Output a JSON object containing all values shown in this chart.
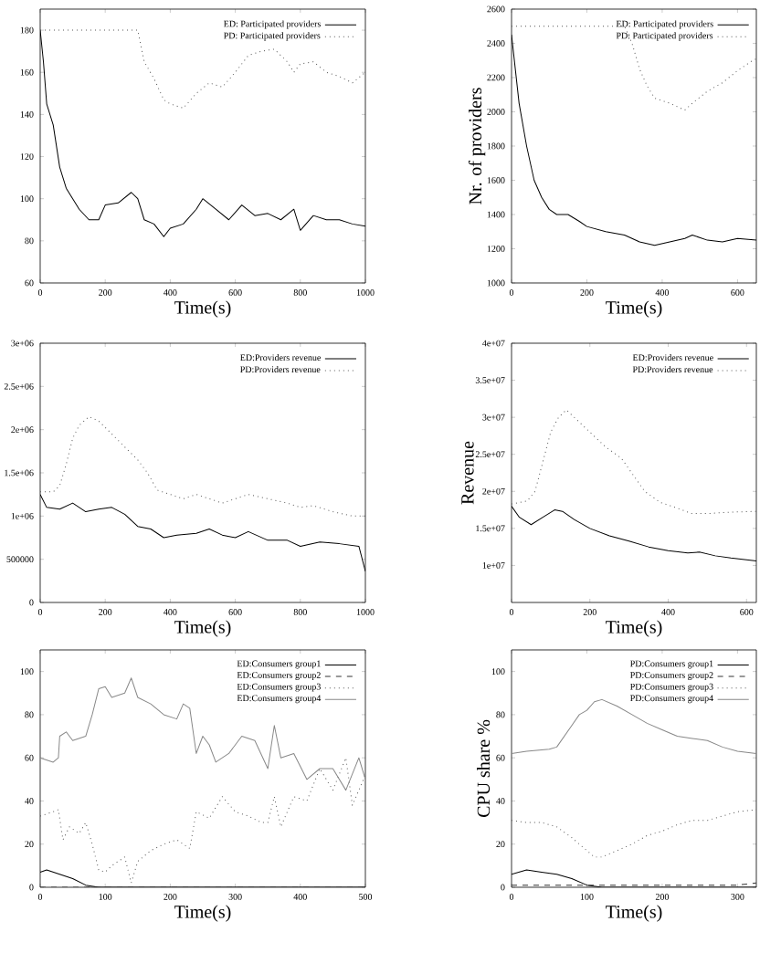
{
  "chart_data": [
    {
      "type": "line",
      "xlabel": "Time(s)",
      "xlim": [
        0,
        1000
      ],
      "xticks": [
        0,
        200,
        400,
        600,
        800,
        1000
      ],
      "ylim": [
        60,
        190
      ],
      "yticks": [
        60,
        80,
        100,
        120,
        140,
        160,
        180
      ],
      "legend": "top right",
      "series": [
        {
          "name": "ED: Participated providers",
          "color": "#000000",
          "line_style": "solid",
          "x": [
            0,
            10,
            20,
            40,
            60,
            80,
            100,
            120,
            150,
            180,
            200,
            240,
            280,
            300,
            320,
            350,
            380,
            400,
            440,
            480,
            500,
            540,
            580,
            620,
            660,
            700,
            740,
            780,
            800,
            840,
            880,
            920,
            960,
            1000
          ],
          "values": [
            180,
            165,
            145,
            135,
            115,
            105,
            100,
            95,
            90,
            90,
            97,
            98,
            103,
            100,
            90,
            88,
            82,
            86,
            88,
            95,
            100,
            95,
            90,
            97,
            92,
            93,
            90,
            95,
            85,
            92,
            90,
            90,
            88,
            87
          ]
        },
        {
          "name": "PD: Participated providers",
          "color": "#555555",
          "line_style": "dotted",
          "x": [
            0,
            300,
            320,
            350,
            380,
            400,
            440,
            480,
            520,
            560,
            600,
            640,
            680,
            720,
            760,
            780,
            800,
            840,
            880,
            920,
            960,
            1000
          ],
          "values": [
            180,
            180,
            165,
            157,
            147,
            145,
            143,
            150,
            155,
            153,
            160,
            168,
            170,
            171,
            165,
            160,
            164,
            165,
            160,
            158,
            155,
            160
          ]
        }
      ]
    },
    {
      "type": "line",
      "xlabel": "Time(s)",
      "ylabel": "Nr. of providers",
      "xlim": [
        0,
        650
      ],
      "xticks": [
        0,
        200,
        400,
        600
      ],
      "ylim": [
        1000,
        2600
      ],
      "yticks": [
        1000,
        1200,
        1400,
        1600,
        1800,
        2000,
        2200,
        2400,
        2600
      ],
      "legend": "top right",
      "series": [
        {
          "name": "ED: Participated providers",
          "color": "#000000",
          "line_style": "solid",
          "x": [
            0,
            10,
            20,
            40,
            60,
            80,
            100,
            120,
            150,
            180,
            200,
            250,
            300,
            340,
            380,
            420,
            460,
            480,
            520,
            560,
            600,
            650
          ],
          "values": [
            2450,
            2250,
            2050,
            1800,
            1600,
            1500,
            1430,
            1400,
            1400,
            1360,
            1330,
            1300,
            1280,
            1240,
            1220,
            1240,
            1260,
            1280,
            1250,
            1240,
            1260,
            1250
          ]
        },
        {
          "name": "PD: Participated providers",
          "color": "#555555",
          "line_style": "dotted",
          "x": [
            0,
            300,
            320,
            340,
            360,
            380,
            420,
            460,
            480,
            520,
            560,
            600,
            640,
            650
          ],
          "values": [
            2500,
            2500,
            2400,
            2250,
            2150,
            2080,
            2050,
            2010,
            2050,
            2120,
            2170,
            2240,
            2300,
            2310
          ]
        }
      ]
    },
    {
      "type": "line",
      "xlabel": "Time(s)",
      "xlim": [
        0,
        1000
      ],
      "xticks": [
        0,
        200,
        400,
        600,
        800,
        1000
      ],
      "ylim": [
        0,
        3000000
      ],
      "yticks": [
        0,
        500000,
        {
          "value": 1000000,
          "label": "1e+06"
        },
        {
          "value": 1500000,
          "label": "1.5e+06"
        },
        {
          "value": 2000000,
          "label": "2e+06"
        },
        {
          "value": 2500000,
          "label": "2.5e+06"
        },
        {
          "value": 3000000,
          "label": "3e+06"
        }
      ],
      "legend": "top right",
      "series": [
        {
          "name": "ED:Providers revenue",
          "color": "#000000",
          "line_style": "solid",
          "x": [
            0,
            20,
            60,
            100,
            140,
            180,
            220,
            260,
            300,
            340,
            380,
            420,
            480,
            520,
            560,
            600,
            640,
            700,
            760,
            800,
            860,
            920,
            980,
            1000
          ],
          "values": [
            1250000,
            1100000,
            1080000,
            1150000,
            1050000,
            1080000,
            1100000,
            1020000,
            880000,
            850000,
            750000,
            780000,
            800000,
            850000,
            780000,
            750000,
            820000,
            720000,
            720000,
            650000,
            700000,
            680000,
            650000,
            360000
          ]
        },
        {
          "name": "PD:Providers revenue",
          "color": "#555555",
          "line_style": "dotted",
          "x": [
            0,
            40,
            60,
            80,
            100,
            120,
            150,
            180,
            220,
            260,
            300,
            330,
            360,
            400,
            440,
            480,
            520,
            560,
            600,
            640,
            700,
            760,
            800,
            840,
            900,
            960,
            1000
          ],
          "values": [
            1280000,
            1280000,
            1350000,
            1600000,
            1900000,
            2050000,
            2150000,
            2100000,
            1950000,
            1800000,
            1650000,
            1500000,
            1300000,
            1250000,
            1200000,
            1250000,
            1200000,
            1150000,
            1200000,
            1250000,
            1200000,
            1150000,
            1100000,
            1120000,
            1050000,
            1000000,
            1000000
          ]
        }
      ]
    },
    {
      "type": "line",
      "xlabel": "Time(s)",
      "ylabel": "Revenue",
      "xlim": [
        0,
        625
      ],
      "xticks": [
        0,
        200,
        400,
        600
      ],
      "ylim": [
        5000000,
        40000000
      ],
      "yticks": [
        {
          "value": 10000000,
          "label": "1e+07"
        },
        {
          "value": 15000000,
          "label": "1.5e+07"
        },
        {
          "value": 20000000,
          "label": "2e+07"
        },
        {
          "value": 25000000,
          "label": "2.5e+07"
        },
        {
          "value": 30000000,
          "label": "3e+07"
        },
        {
          "value": 35000000,
          "label": "3.5e+07"
        },
        {
          "value": 40000000,
          "label": "4e+07"
        }
      ],
      "legend": "top right",
      "series": [
        {
          "name": "ED:Providers revenue",
          "color": "#000000",
          "line_style": "solid",
          "x": [
            0,
            20,
            50,
            80,
            110,
            130,
            160,
            200,
            250,
            300,
            350,
            400,
            450,
            480,
            520,
            560,
            625
          ],
          "values": [
            18000000,
            16500000,
            15500000,
            16500000,
            17500000,
            17300000,
            16200000,
            15000000,
            14000000,
            13300000,
            12500000,
            12000000,
            11700000,
            11800000,
            11300000,
            11000000,
            10600000
          ]
        },
        {
          "name": "PD:Providers revenue",
          "color": "#555555",
          "line_style": "dotted",
          "x": [
            0,
            40,
            60,
            80,
            100,
            120,
            140,
            160,
            200,
            240,
            280,
            300,
            340,
            380,
            420,
            460,
            500,
            560,
            625
          ],
          "values": [
            18300000,
            18700000,
            20000000,
            24000000,
            28000000,
            30000000,
            31000000,
            30000000,
            28000000,
            26000000,
            24500000,
            23000000,
            20000000,
            18500000,
            17800000,
            17000000,
            17000000,
            17200000,
            17300000
          ]
        }
      ]
    },
    {
      "type": "line",
      "xlabel": "Time(s)",
      "xlim": [
        0,
        500
      ],
      "xticks": [
        0,
        100,
        200,
        300,
        400,
        500
      ],
      "ylim": [
        0,
        110
      ],
      "yticks": [
        0,
        20,
        40,
        60,
        80,
        100
      ],
      "legend": "top right",
      "series": [
        {
          "name": "ED:Consumers group1",
          "color": "#000000",
          "line_style": "solid",
          "x": [
            0,
            10,
            30,
            50,
            70,
            90,
            500
          ],
          "values": [
            7,
            8,
            6,
            4,
            1,
            0,
            0
          ]
        },
        {
          "name": "ED:Consumers group2",
          "color": "#333333",
          "line_style": "dashed",
          "x": [
            0,
            500
          ],
          "values": [
            0,
            0
          ]
        },
        {
          "name": "ED:Consumers group3",
          "color": "#555555",
          "line_style": "dotted",
          "x": [
            0,
            20,
            28,
            35,
            45,
            60,
            70,
            80,
            90,
            100,
            110,
            120,
            130,
            140,
            150,
            170,
            190,
            210,
            230,
            240,
            260,
            280,
            300,
            320,
            340,
            350,
            360,
            370,
            390,
            410,
            430,
            450,
            470,
            480,
            500
          ],
          "values": [
            33,
            35,
            36,
            22,
            28,
            25,
            30,
            20,
            8,
            7,
            10,
            12,
            14,
            2,
            12,
            17,
            20,
            22,
            18,
            35,
            32,
            42,
            35,
            33,
            30,
            30,
            42,
            28,
            42,
            40,
            55,
            45,
            60,
            38,
            52
          ]
        },
        {
          "name": "ED:Consumers group4",
          "color": "#888888",
          "line_style": "solid",
          "x": [
            0,
            20,
            28,
            30,
            40,
            50,
            70,
            80,
            90,
            100,
            110,
            130,
            140,
            150,
            170,
            190,
            210,
            220,
            230,
            240,
            250,
            260,
            270,
            290,
            310,
            330,
            350,
            360,
            370,
            390,
            410,
            430,
            450,
            470,
            490,
            500
          ],
          "values": [
            60,
            58,
            60,
            70,
            72,
            68,
            70,
            80,
            92,
            93,
            88,
            90,
            97,
            88,
            85,
            80,
            78,
            85,
            83,
            62,
            70,
            66,
            58,
            62,
            70,
            68,
            55,
            75,
            60,
            62,
            50,
            55,
            55,
            45,
            60,
            50
          ]
        }
      ]
    },
    {
      "type": "line",
      "xlabel": "Time(s)",
      "ylabel": "CPU share %",
      "xlim": [
        0,
        325
      ],
      "xticks": [
        0,
        100,
        200,
        300
      ],
      "ylim": [
        0,
        110
      ],
      "yticks": [
        0,
        20,
        40,
        60,
        80,
        100
      ],
      "legend": "top right",
      "series": [
        {
          "name": "PD:Consumers group1",
          "color": "#000000",
          "line_style": "solid",
          "x": [
            0,
            20,
            40,
            60,
            80,
            100,
            120,
            325
          ],
          "values": [
            6,
            8,
            7,
            6,
            4,
            1,
            0,
            0
          ]
        },
        {
          "name": "PD:Consumers group2",
          "color": "#333333",
          "line_style": "dashed",
          "x": [
            0,
            50,
            100,
            300,
            325
          ],
          "values": [
            1,
            1,
            1,
            1,
            2
          ]
        },
        {
          "name": "PD:Consumers group3",
          "color": "#555555",
          "line_style": "dotted",
          "x": [
            0,
            20,
            40,
            60,
            80,
            100,
            110,
            120,
            140,
            160,
            180,
            200,
            220,
            240,
            260,
            280,
            300,
            325
          ],
          "values": [
            31,
            30,
            30,
            28,
            23,
            17,
            14,
            14,
            17,
            20,
            24,
            26,
            29,
            31,
            31,
            33,
            35,
            36
          ]
        },
        {
          "name": "PD:Consumers group4",
          "color": "#888888",
          "line_style": "solid",
          "x": [
            0,
            20,
            50,
            60,
            70,
            80,
            90,
            100,
            110,
            120,
            140,
            160,
            180,
            200,
            220,
            240,
            260,
            280,
            300,
            325
          ],
          "values": [
            62,
            63,
            64,
            65,
            70,
            75,
            80,
            82,
            86,
            87,
            84,
            80,
            76,
            73,
            70,
            69,
            68,
            65,
            63,
            62
          ]
        }
      ]
    }
  ]
}
